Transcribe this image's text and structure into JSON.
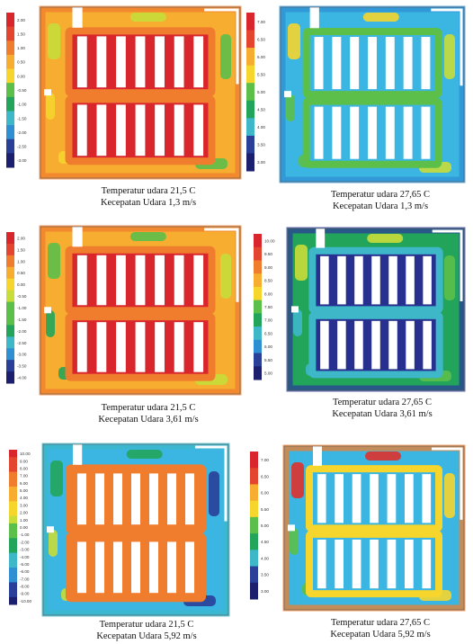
{
  "panels": [
    {
      "id": "p1",
      "scale_labels": [
        "2.00",
        "1.50",
        "1.00",
        "0.50",
        "0.00",
        "-0.50",
        "-1.00",
        "-1.50",
        "-2.00",
        "-2.50",
        "-3.00"
      ],
      "caption_line1": "Temperatur udara 21,5 C",
      "caption_line2": "Kecepatan Udara 1,3 m/s"
    },
    {
      "id": "p2",
      "scale_labels": [
        "7.00",
        "6.50",
        "6.00",
        "5.50",
        "5.00",
        "4.50",
        "4.00",
        "3.50",
        "3.00"
      ],
      "caption_line1": "Temperatur udara 27,65 C",
      "caption_line2": "Kecepatan Udara 1,3 m/s"
    },
    {
      "id": "p3",
      "scale_labels": [
        "2.00",
        "1.50",
        "1.00",
        "0.50",
        "0.00",
        "-0.50",
        "-1.00",
        "-1.50",
        "-2.00",
        "-2.50",
        "-3.00",
        "-3.50",
        "-4.00"
      ],
      "caption_line1": "Temperatur udara 21,5 C",
      "caption_line2": "Kecepatan Udara 3,61 m/s"
    },
    {
      "id": "p4",
      "scale_labels": [
        "10.00",
        "9.50",
        "9.00",
        "8.50",
        "8.00",
        "7.50",
        "7.00",
        "6.50",
        "6.00",
        "5.50",
        "5.00"
      ],
      "caption_line1": "Temperatur udara 27,65 C",
      "caption_line2": "Kecepatan Udara 3,61 m/s"
    },
    {
      "id": "p5",
      "scale_labels": [
        "10.00",
        "9.00",
        "8.00",
        "7.00",
        "6.00",
        "5.00",
        "4.00",
        "3.00",
        "2.00",
        "1.00",
        "0.00",
        "-1.00",
        "-2.00",
        "-3.00",
        "-4.00",
        "-5.00",
        "-6.00",
        "-7.00",
        "-8.00",
        "-9.00",
        "-10.00"
      ],
      "caption_line1": "Temperatur udara 21,5 C",
      "caption_line2": "Kecepatan Udara 5,92 m/s"
    },
    {
      "id": "p6",
      "scale_labels": [
        "7.00",
        "6.50",
        "6.00",
        "5.50",
        "5.00",
        "4.50",
        "4.00",
        "3.50",
        "3.00"
      ],
      "caption_line1": "Temperatur udara 27,65 C",
      "caption_line2": "Kecepatan Udara 5,92 m/s"
    }
  ],
  "palette": {
    "scale": [
      "#d8262c",
      "#e3452e",
      "#f07d2e",
      "#f6ad30",
      "#f6d52d",
      "#c8dd3a",
      "#5cbf4a",
      "#22a55a",
      "#3eb7c9",
      "#2f8fd3",
      "#2a3f98",
      "#1b1f6e"
    ],
    "warm_bg": "#f29a2e",
    "hot": "#e0312c",
    "cool_bg": "#3bb6e3",
    "deep": "#27308f",
    "wall": "#ffffff"
  }
}
